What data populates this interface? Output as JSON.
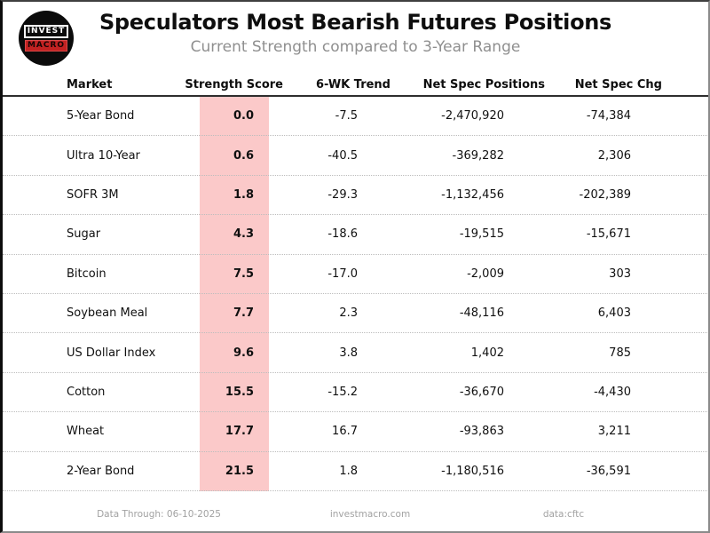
{
  "page": {
    "title": "Speculators Most Bearish Futures Positions",
    "subtitle": "Current Strength compared to 3-Year Range"
  },
  "logo": {
    "top": "INVEST",
    "bottom": "MACRO"
  },
  "chart_data": {
    "type": "table",
    "title": "Speculators Most Bearish Futures Positions",
    "subtitle": "Current Strength compared to 3-Year Range",
    "columns": [
      "Market",
      "Strength Score",
      "6-WK Trend",
      "Net Spec Positions",
      "Net Spec Chg"
    ],
    "rows": [
      {
        "market": "5-Year Bond",
        "score": "0.0",
        "trend": "-7.5",
        "positions": "-2,470,920",
        "change": "-74,384"
      },
      {
        "market": "Ultra 10-Year",
        "score": "0.6",
        "trend": "-40.5",
        "positions": "-369,282",
        "change": "2,306"
      },
      {
        "market": "SOFR 3M",
        "score": "1.8",
        "trend": "-29.3",
        "positions": "-1,132,456",
        "change": "-202,389"
      },
      {
        "market": "Sugar",
        "score": "4.3",
        "trend": "-18.6",
        "positions": "-19,515",
        "change": "-15,671"
      },
      {
        "market": "Bitcoin",
        "score": "7.5",
        "trend": "-17.0",
        "positions": "-2,009",
        "change": "303"
      },
      {
        "market": "Soybean Meal",
        "score": "7.7",
        "trend": "2.3",
        "positions": "-48,116",
        "change": "6,403"
      },
      {
        "market": "US Dollar Index",
        "score": "9.6",
        "trend": "3.8",
        "positions": "1,402",
        "change": "785"
      },
      {
        "market": "Cotton",
        "score": "15.5",
        "trend": "-15.2",
        "positions": "-36,670",
        "change": "-4,430"
      },
      {
        "market": "Wheat",
        "score": "17.7",
        "trend": "16.7",
        "positions": "-93,863",
        "change": "3,211"
      },
      {
        "market": "2-Year Bond",
        "score": "21.5",
        "trend": "1.8",
        "positions": "-1,180,516",
        "change": "-36,591"
      }
    ],
    "highlight": {
      "column": "Strength Score",
      "color": "#fbc9c9"
    },
    "layout": {
      "grid": "off",
      "row_separator": "dotted"
    }
  },
  "footer": {
    "data_through": "Data Through: 06-10-2025",
    "website": "investmacro.com",
    "source": "data:cftc"
  },
  "colors": {
    "score_band": "#fbc9c9",
    "logo_red": "#c32222",
    "subtitle_gray": "#8f8f8f",
    "footer_gray": "#a2a2a2",
    "text": "#101010"
  }
}
